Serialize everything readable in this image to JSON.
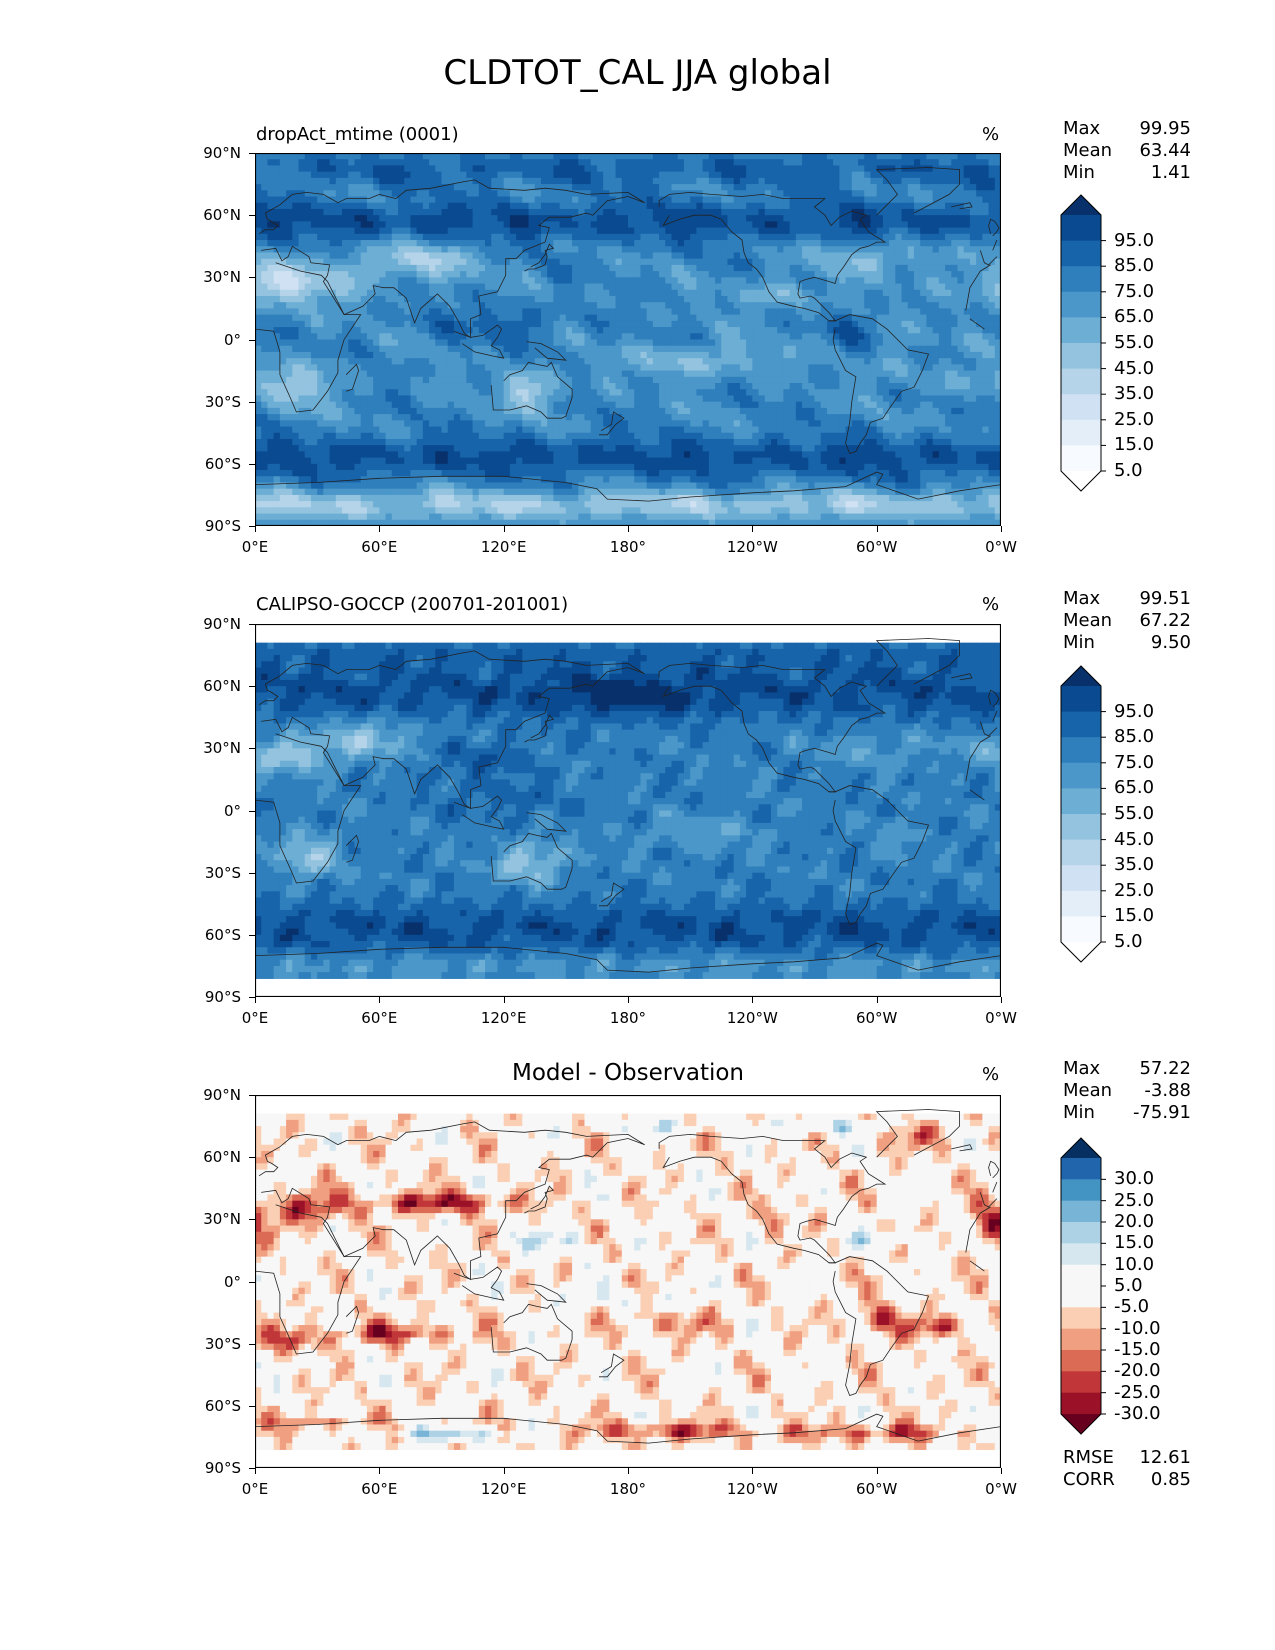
{
  "title": "CLDTOT_CAL JJA global",
  "axes": {
    "y_ticks": [
      "90°N",
      "60°N",
      "30°N",
      "0°",
      "30°S",
      "60°S",
      "90°S"
    ],
    "x_ticks": [
      "0°E",
      "60°E",
      "120°E",
      "180°",
      "120°W",
      "60°W",
      "0°W"
    ]
  },
  "panels": [
    {
      "title": "dropAct_mtime (0001)",
      "unit": "%",
      "stats": {
        "max_label": "Max",
        "max": "99.95",
        "mean_label": "Mean",
        "mean": "63.44",
        "min_label": "Min",
        "min": "1.41"
      },
      "colorbar": [
        "95.0",
        "85.0",
        "75.0",
        "65.0",
        "55.0",
        "45.0",
        "35.0",
        "25.0",
        "15.0",
        "5.0"
      ]
    },
    {
      "title": "CALIPSO-GOCCP (200701-201001)",
      "unit": "%",
      "stats": {
        "max_label": "Max",
        "max": "99.51",
        "mean_label": "Mean",
        "mean": "67.22",
        "min_label": "Min",
        "min": "9.50"
      },
      "colorbar": [
        "95.0",
        "85.0",
        "75.0",
        "65.0",
        "55.0",
        "45.0",
        "35.0",
        "25.0",
        "15.0",
        "5.0"
      ]
    },
    {
      "title": "Model - Observation",
      "unit": "%",
      "stats": {
        "max_label": "Max",
        "max": "57.22",
        "mean_label": "Mean",
        "mean": "-3.88",
        "min_label": "Min",
        "min": "-75.91"
      },
      "colorbar": [
        "30.0",
        "25.0",
        "20.0",
        "15.0",
        "10.0",
        "5.0",
        "-5.0",
        "-10.0",
        "-15.0",
        "-20.0",
        "-25.0",
        "-30.0"
      ],
      "metrics": {
        "rmse_label": "RMSE",
        "rmse": "12.61",
        "corr_label": "CORR",
        "corr": "0.85"
      }
    }
  ],
  "colors": {
    "blues": [
      "#f7fbff",
      "#e3eef9",
      "#cfe1f2",
      "#b5d4e9",
      "#93c3df",
      "#6daed5",
      "#4b97c9",
      "#2f7fbc",
      "#1864aa",
      "#0a4a90",
      "#08306b"
    ],
    "rdbu": [
      "#67001f",
      "#9b1127",
      "#c13639",
      "#db6b55",
      "#f0a081",
      "#fbcfb4",
      "#f7f7f7",
      "#f7f7f7",
      "#d6e7f0",
      "#aed2e5",
      "#78b4d5",
      "#4393c3",
      "#2166ac",
      "#053061"
    ]
  },
  "chart_data": [
    {
      "type": "heatmap",
      "title": "dropAct_mtime (0001)",
      "unit": "%",
      "x_axis": "longitude 0°E to 0°W",
      "y_axis": "latitude 90°S to 90°N",
      "levels": [
        0,
        5,
        15,
        25,
        35,
        45,
        55,
        65,
        75,
        85,
        95,
        100
      ],
      "max": 99.95,
      "mean": 63.44,
      "min": 1.41
    },
    {
      "type": "heatmap",
      "title": "CALIPSO-GOCCP (200701-201001)",
      "unit": "%",
      "x_axis": "longitude 0°E to 0°W",
      "y_axis": "latitude 90°S to 90°N",
      "levels": [
        0,
        5,
        15,
        25,
        35,
        45,
        55,
        65,
        75,
        85,
        95,
        100
      ],
      "max": 99.51,
      "mean": 67.22,
      "min": 9.5
    },
    {
      "type": "heatmap",
      "title": "Model - Observation",
      "unit": "%",
      "x_axis": "longitude 0°E to 0°W",
      "y_axis": "latitude 90°S to 90°N",
      "levels": [
        -30,
        -25,
        -20,
        -15,
        -10,
        -5,
        5,
        10,
        15,
        20,
        25,
        30
      ],
      "max": 57.22,
      "mean": -3.88,
      "min": -75.91,
      "rmse": 12.61,
      "corr": 0.85
    }
  ]
}
